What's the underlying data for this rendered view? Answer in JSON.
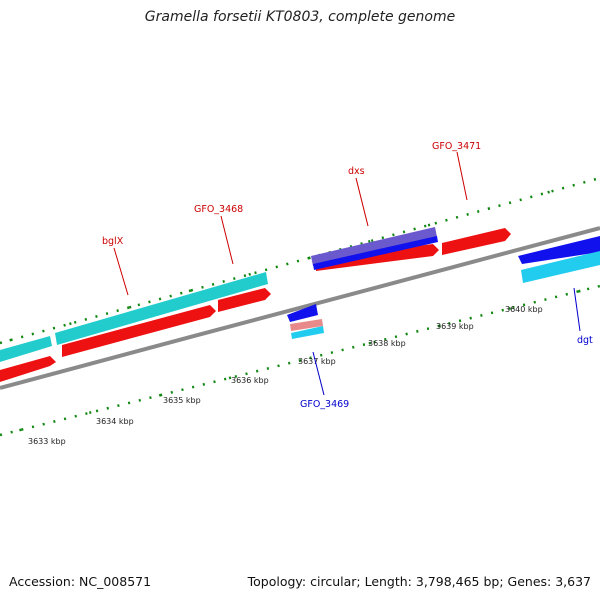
{
  "title": "Gramella forsetii KT0803, complete genome",
  "footer": {
    "accession": "Accession: NC_008571",
    "summary": "Topology: circular; Length: 3,798,465 bp; Genes: 3,637"
  },
  "colors": {
    "backbone": "#8a8a8a",
    "forward_strand": "#ee1111",
    "forward_alt": "#22cccc",
    "reverse_strand": "#1111ee",
    "reverse_alt": "#22ccee",
    "purple": "#6a5acd",
    "pink": "#e88a8a",
    "tick": "#118811",
    "label_forward": "#cc0000",
    "label_reverse": "#0000cc"
  },
  "scale_labels": [
    "3633 kbp",
    "3634 kbp",
    "3635 kbp",
    "3636 kbp",
    "3637 kbp",
    "3638 kbp",
    "3639 kbp",
    "3640 kbp"
  ],
  "gene_labels": {
    "bglX": "bglX",
    "GFO_3468": "GFO_3468",
    "dxs": "dxs",
    "GFO_3471": "GFO_3471",
    "GFO_3469": "GFO_3469",
    "dgt": "dgt"
  }
}
